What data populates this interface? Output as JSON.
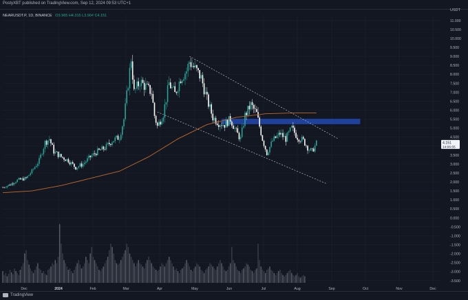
{
  "header": {
    "publisher_line": "PostyXBT published on TradingView.com, Sep 12, 2024 09:53 UTC+1"
  },
  "legend": {
    "symbol": "NEARUSDT.P, 1D, BINANCE",
    "ohlc": "O3.965 H4.315 L3.904 C4.151"
  },
  "footer": {
    "brand": "TradingView"
  },
  "colors": {
    "background": "#131722",
    "up": "#26a69a",
    "down": "#ffffff",
    "ma": "#c06a2b",
    "zone": "#2962ff",
    "price_tag": "#f0f3fa"
  },
  "price_tag": {
    "price": "4.151",
    "timer": "14:06:55"
  },
  "chart_data": {
    "type": "candlestick",
    "quote_unit": "USDT",
    "y_ticks": [
      "11.000",
      "10.500",
      "10.000",
      "9.500",
      "9.000",
      "8.500",
      "8.000",
      "7.500",
      "7.000",
      "6.500",
      "6.000",
      "5.500",
      "5.000",
      "4.500",
      "4.000",
      "3.500",
      "3.000",
      "2.500",
      "2.000",
      "1.500",
      "1.000",
      "0.500",
      "0.000",
      "-0.500",
      "-1.000",
      "-1.500",
      "-2.000",
      "-2.500",
      "-3.000",
      "-3.500"
    ],
    "x_ticks": [
      "Dec",
      "2024",
      "Feb",
      "Mar",
      "Apr",
      "May",
      "Jun",
      "Jul",
      "Aug",
      "Sep",
      "Oct",
      "Nov",
      "Dec"
    ],
    "ylim": [
      -3.7,
      11.3
    ],
    "price_path": [
      [
        0,
        1.7
      ],
      [
        5,
        1.85
      ],
      [
        10,
        2.1
      ],
      [
        16,
        2.2
      ],
      [
        20,
        2.6
      ],
      [
        25,
        3.2
      ],
      [
        29,
        4.2
      ],
      [
        32,
        4.4
      ],
      [
        35,
        3.7
      ],
      [
        40,
        3.4
      ],
      [
        45,
        3.2
      ],
      [
        50,
        2.8
      ],
      [
        55,
        3.0
      ],
      [
        60,
        3.4
      ],
      [
        65,
        3.7
      ],
      [
        70,
        3.9
      ],
      [
        75,
        4.3
      ],
      [
        80,
        4.5
      ],
      [
        83,
        5.5
      ],
      [
        86,
        7.5
      ],
      [
        88,
        8.9
      ],
      [
        90,
        7.0
      ],
      [
        94,
        7.6
      ],
      [
        98,
        7.3
      ],
      [
        102,
        7.0
      ],
      [
        104,
        5.7
      ],
      [
        106,
        5.1
      ],
      [
        110,
        5.8
      ],
      [
        114,
        7.5
      ],
      [
        118,
        6.9
      ],
      [
        122,
        7.8
      ],
      [
        126,
        8.2
      ],
      [
        128,
        8.7
      ],
      [
        132,
        8.3
      ],
      [
        136,
        7.8
      ],
      [
        140,
        6.6
      ],
      [
        144,
        5.6
      ],
      [
        148,
        5.3
      ],
      [
        152,
        5.2
      ],
      [
        156,
        5.5
      ],
      [
        160,
        4.8
      ],
      [
        163,
        4.4
      ],
      [
        166,
        5.7
      ],
      [
        170,
        6.3
      ],
      [
        174,
        5.8
      ],
      [
        178,
        4.4
      ],
      [
        181,
        3.6
      ],
      [
        185,
        4.3
      ],
      [
        190,
        4.7
      ],
      [
        194,
        4.4
      ],
      [
        198,
        5.0
      ],
      [
        202,
        4.5
      ],
      [
        206,
        4.3
      ],
      [
        210,
        3.8
      ],
      [
        212,
        3.7
      ],
      [
        215,
        4.15
      ]
    ],
    "ma_path": [
      [
        0,
        1.4
      ],
      [
        20,
        1.5
      ],
      [
        40,
        1.8
      ],
      [
        60,
        2.2
      ],
      [
        80,
        2.6
      ],
      [
        100,
        3.4
      ],
      [
        120,
        4.4
      ],
      [
        140,
        5.2
      ],
      [
        160,
        5.6
      ],
      [
        180,
        5.8
      ],
      [
        200,
        5.85
      ],
      [
        215,
        5.85
      ]
    ],
    "channel_upper": [
      [
        128,
        9.0
      ],
      [
        230,
        4.4
      ]
    ],
    "channel_lower": [
      [
        106,
        5.9
      ],
      [
        222,
        1.9
      ]
    ],
    "resistance_zone": {
      "y_top": 5.52,
      "y_bottom": 5.22,
      "x_start": 150,
      "x_end": 245
    },
    "volume": [
      0.18,
      0.12,
      0.15,
      0.1,
      0.14,
      0.2,
      0.16,
      0.13,
      0.22,
      0.18,
      0.15,
      0.12,
      0.2,
      0.25,
      0.3,
      0.45,
      0.5,
      0.35,
      0.28,
      0.22,
      0.18,
      0.15,
      0.2,
      0.25,
      0.3,
      0.22,
      0.2,
      0.15,
      0.18,
      0.14,
      0.12,
      0.2,
      0.22,
      0.25,
      0.3,
      0.28,
      0.35,
      0.3,
      0.4,
      0.9,
      0.6,
      0.45,
      0.35,
      0.3,
      0.25,
      0.2,
      0.22,
      0.18,
      0.15,
      0.2,
      0.25,
      0.3,
      0.35,
      0.28,
      0.22,
      0.25,
      0.3,
      0.4,
      0.35,
      0.3,
      0.45,
      0.55,
      0.4,
      0.35,
      0.3,
      0.25,
      0.2,
      0.18,
      0.22,
      0.25,
      0.3,
      0.35,
      0.4,
      0.5,
      0.6,
      0.55,
      0.45,
      0.35,
      0.3,
      0.28,
      0.3,
      0.35,
      0.4,
      0.45,
      0.5,
      0.6,
      0.55,
      0.45,
      0.4,
      0.35,
      0.3,
      0.25,
      0.3,
      0.35,
      0.3,
      0.28,
      0.25,
      0.22,
      0.3,
      0.35,
      0.4,
      0.35,
      0.3,
      0.25,
      0.22,
      0.2,
      0.18,
      0.2,
      0.25,
      0.3,
      0.28,
      0.25,
      0.3,
      0.35,
      0.4,
      0.35,
      0.3,
      0.25,
      0.2,
      0.22,
      0.18,
      0.15,
      0.2,
      0.22,
      0.25,
      0.3,
      0.35,
      0.3,
      0.25,
      0.2,
      0.18,
      0.22,
      0.25,
      0.3,
      0.28,
      0.25,
      0.2,
      0.18,
      0.15,
      0.2,
      0.22,
      0.25,
      0.3,
      0.28,
      0.25,
      0.22,
      0.2,
      0.25,
      0.3,
      0.35,
      0.3,
      0.25,
      0.2,
      0.18,
      0.2,
      0.25,
      0.3,
      0.55,
      0.35,
      0.3,
      0.25,
      0.2,
      0.18,
      0.15,
      0.2,
      0.22,
      0.25,
      0.3,
      0.28,
      0.25,
      0.2,
      0.18,
      0.15,
      0.2,
      0.22,
      0.6,
      0.35,
      0.25,
      0.2,
      0.18,
      0.15,
      0.2,
      0.22,
      0.25,
      0.2,
      0.18,
      0.15,
      0.12,
      0.15,
      0.18,
      0.2,
      0.15,
      0.12,
      0.1,
      0.12,
      0.15,
      0.18,
      0.2,
      0.15,
      0.12,
      0.1,
      0.12,
      0.15,
      0.1,
      0.08,
      0.1,
      0.12,
      0.1
    ]
  }
}
